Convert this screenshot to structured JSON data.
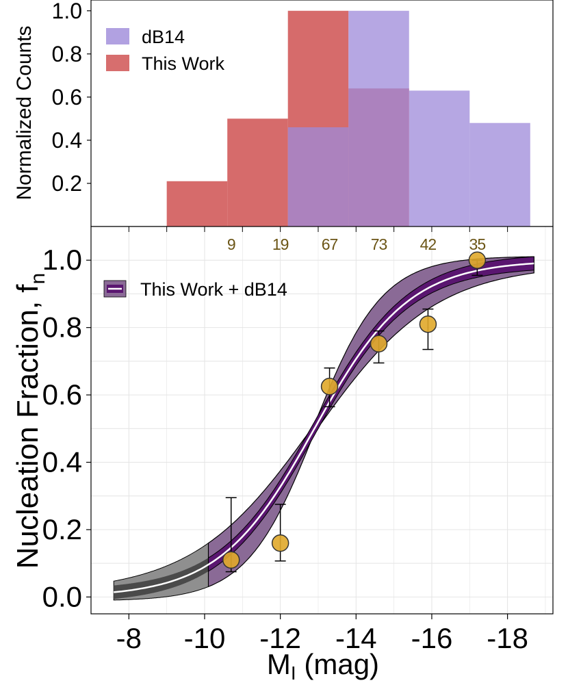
{
  "chart_data": [
    {
      "type": "bar",
      "panel": "top",
      "ylabel": "Normalized Counts",
      "yticks": [
        "0.2",
        "0.4",
        "0.6",
        "0.8",
        "1.0"
      ],
      "ylim": [
        0,
        1.05
      ],
      "bin_edges": [
        -9,
        -10.6,
        -12.2,
        -13.8,
        -15.4,
        -17.0,
        -18.6
      ],
      "series": [
        {
          "name": "This Work",
          "color": "#cd4a4a",
          "values": [
            0.21,
            0.5,
            1.0,
            0.64,
            0,
            0
          ]
        },
        {
          "name": "dB14",
          "color": "#9d8ad9",
          "values": [
            0,
            0,
            0.46,
            1.0,
            0.63,
            0.48
          ]
        }
      ],
      "legend": {
        "position": "top-left",
        "entries": [
          "dB14",
          "This Work"
        ]
      }
    },
    {
      "type": "scatter",
      "panel": "bottom",
      "xlabel": "M",
      "xlabel_sub": "I",
      "xlabel_suffix": " (mag)",
      "ylabel": "Nucleation Fraction, f",
      "ylabel_sub": "n",
      "xticks": [
        "-8",
        "-10",
        "-12",
        "-14",
        "-16",
        "-18"
      ],
      "yticks": [
        "0.0",
        "0.2",
        "0.4",
        "0.6",
        "0.8",
        "1.0"
      ],
      "xlim": [
        -7.0,
        -19.2
      ],
      "ylim": [
        -0.05,
        1.1
      ],
      "counts": [
        {
          "x": -10.7,
          "label": "9"
        },
        {
          "x": -12.0,
          "label": "19"
        },
        {
          "x": -13.3,
          "label": "67"
        },
        {
          "x": -14.6,
          "label": "73"
        },
        {
          "x": -15.9,
          "label": "42"
        },
        {
          "x": -17.2,
          "label": "35"
        }
      ],
      "points": [
        {
          "x": -10.7,
          "y": 0.11,
          "err_low": 0.075,
          "err_high": 0.295
        },
        {
          "x": -12.0,
          "y": 0.16,
          "err_low": 0.107,
          "err_high": 0.275
        },
        {
          "x": -13.3,
          "y": 0.625,
          "err_low": 0.565,
          "err_high": 0.68
        },
        {
          "x": -14.6,
          "y": 0.752,
          "err_low": 0.695,
          "err_high": 0.79
        },
        {
          "x": -15.9,
          "y": 0.81,
          "err_low": 0.735,
          "err_high": 0.855
        },
        {
          "x": -17.2,
          "y": 1.0,
          "err_low": 0.955,
          "err_high": 1.0
        }
      ],
      "fit": {
        "model": "logistic",
        "x_range": [
          -7.6,
          -18.7
        ],
        "x_data_start": -10.1,
        "midpoint": -12.9,
        "scale": 1.25,
        "inner_band_width": 0.02,
        "outer_band_scale_spread": 0.28
      },
      "legend": {
        "position": "top-left",
        "entries": [
          "This Work + dB14"
        ]
      },
      "colors": {
        "points": "#e0a92a",
        "band_outer": "#8a6a96",
        "band_inner": "#5a1670",
        "band_extrapolated": "#8f8f8f",
        "fit_line": "#ffffff",
        "count_labels": "#6b5516"
      }
    }
  ]
}
